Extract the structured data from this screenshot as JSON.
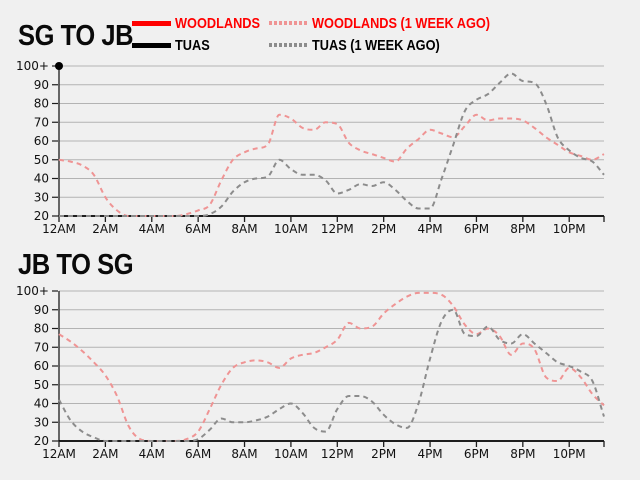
{
  "page": {
    "background": "#f0f0f0"
  },
  "legend": [
    {
      "label": "WOODLANDS",
      "color": "#ff0000",
      "label_color": "#ff0000",
      "line": "solid"
    },
    {
      "label": "WOODLANDS (1 WEEK AGO)",
      "color": "#ef9494",
      "label_color": "#ff0000",
      "line": "dashed"
    },
    {
      "label": "TUAS",
      "color": "#000000",
      "label_color": "#000000",
      "line": "solid"
    },
    {
      "label": "TUAS (1 WEEK AGO)",
      "color": "#8c8c8c",
      "label_color": "#000000",
      "line": "dashed"
    }
  ],
  "chart_data": [
    {
      "type": "line",
      "title": "SG TO JB",
      "x_interval_minutes": 30,
      "x_tick_labels": [
        "12AM",
        "2AM",
        "4AM",
        "6AM",
        "8AM",
        "10AM",
        "12PM",
        "2PM",
        "4PM",
        "6PM",
        "8PM",
        "10PM"
      ],
      "y_tick_labels": [
        "20",
        "30",
        "40",
        "50",
        "60",
        "70",
        "80",
        "90",
        "100+"
      ],
      "y_min": 20,
      "y_max": 100,
      "grid": true,
      "series": [
        {
          "name": "WOODLANDS",
          "color": "#ff0000",
          "style": "solid",
          "values": []
        },
        {
          "name": "TUAS",
          "color": "#000000",
          "style": "solid",
          "values": [
            100
          ]
        },
        {
          "name": "WOODLANDS (1 WEEK AGO)",
          "color": "#ef9494",
          "style": "dashed",
          "values": [
            50,
            49,
            47,
            42,
            30,
            23,
            20,
            20,
            20,
            20,
            20,
            21,
            23,
            26,
            39,
            50,
            54,
            56,
            58,
            74,
            72,
            67,
            66,
            70,
            69,
            59,
            55,
            53,
            51,
            49,
            56,
            61,
            66,
            64,
            62,
            68,
            74,
            71,
            72,
            72,
            71,
            67,
            62,
            58,
            54,
            52,
            50,
            53
          ]
        },
        {
          "name": "TUAS (1 WEEK AGO)",
          "color": "#8c8c8c",
          "style": "dashed",
          "values": [
            20,
            20,
            20,
            20,
            20,
            20,
            20,
            20,
            20,
            20,
            20,
            20,
            20,
            21,
            25,
            33,
            38,
            40,
            41,
            50,
            45,
            42,
            42,
            39,
            32,
            34,
            37,
            36,
            38,
            34,
            28,
            24,
            24,
            40,
            58,
            76,
            82,
            85,
            91,
            96,
            92,
            91,
            80,
            62,
            55,
            51,
            49,
            42
          ]
        }
      ]
    },
    {
      "type": "line",
      "title": "JB TO SG",
      "x_interval_minutes": 30,
      "x_tick_labels": [
        "12AM",
        "2AM",
        "4AM",
        "6AM",
        "8AM",
        "10AM",
        "12PM",
        "2PM",
        "4PM",
        "6PM",
        "8PM",
        "10PM"
      ],
      "y_tick_labels": [
        "20",
        "30",
        "40",
        "50",
        "60",
        "70",
        "80",
        "90",
        "100+"
      ],
      "y_min": 20,
      "y_max": 100,
      "grid": true,
      "series": [
        {
          "name": "WOODLANDS",
          "color": "#ff0000",
          "style": "solid",
          "values": []
        },
        {
          "name": "TUAS",
          "color": "#000000",
          "style": "solid",
          "values": []
        },
        {
          "name": "WOODLANDS (1 WEEK AGO)",
          "color": "#ef9494",
          "style": "dashed",
          "values": [
            77,
            73,
            68,
            62,
            55,
            44,
            28,
            21,
            20,
            20,
            20,
            21,
            25,
            37,
            50,
            59,
            62,
            63,
            62,
            59,
            64,
            66,
            67,
            70,
            74,
            83,
            80,
            81,
            88,
            93,
            97,
            99,
            99,
            98,
            92,
            82,
            77,
            80,
            76,
            66,
            72,
            69,
            54,
            52,
            59,
            54,
            45,
            39
          ]
        },
        {
          "name": "TUAS (1 WEEK AGO)",
          "color": "#8c8c8c",
          "style": "dashed",
          "values": [
            42,
            31,
            25,
            22,
            20,
            20,
            20,
            20,
            20,
            20,
            20,
            20,
            21,
            26,
            32,
            30,
            30,
            31,
            33,
            37,
            40,
            35,
            27,
            25,
            37,
            44,
            44,
            41,
            34,
            29,
            27,
            40,
            64,
            84,
            90,
            77,
            76,
            81,
            74,
            72,
            77,
            72,
            67,
            62,
            60,
            57,
            52,
            33
          ]
        }
      ]
    }
  ]
}
